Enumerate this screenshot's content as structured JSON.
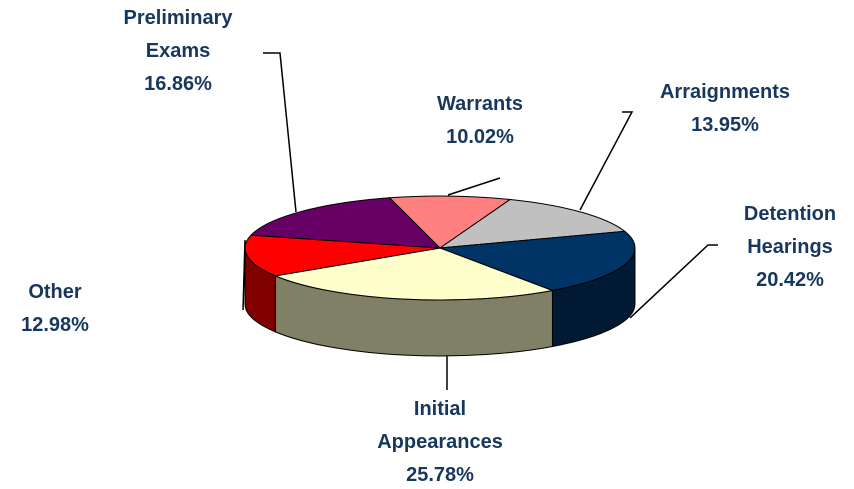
{
  "chart_data": {
    "type": "pie",
    "categories": [
      "Warrants",
      "Arraignments",
      "Detention Hearings",
      "Initial Appearances",
      "Other",
      "Preliminary Exams"
    ],
    "values": [
      10.02,
      13.95,
      20.42,
      25.78,
      12.98,
      16.86
    ],
    "value_labels": [
      "10.02%",
      "13.95%",
      "20.42%",
      "25.78%",
      "12.98%",
      "16.86%"
    ],
    "colors": [
      "#ff8080",
      "#c0c0c0",
      "#003366",
      "#ffffcc",
      "#ff0000",
      "#660066"
    ]
  }
}
